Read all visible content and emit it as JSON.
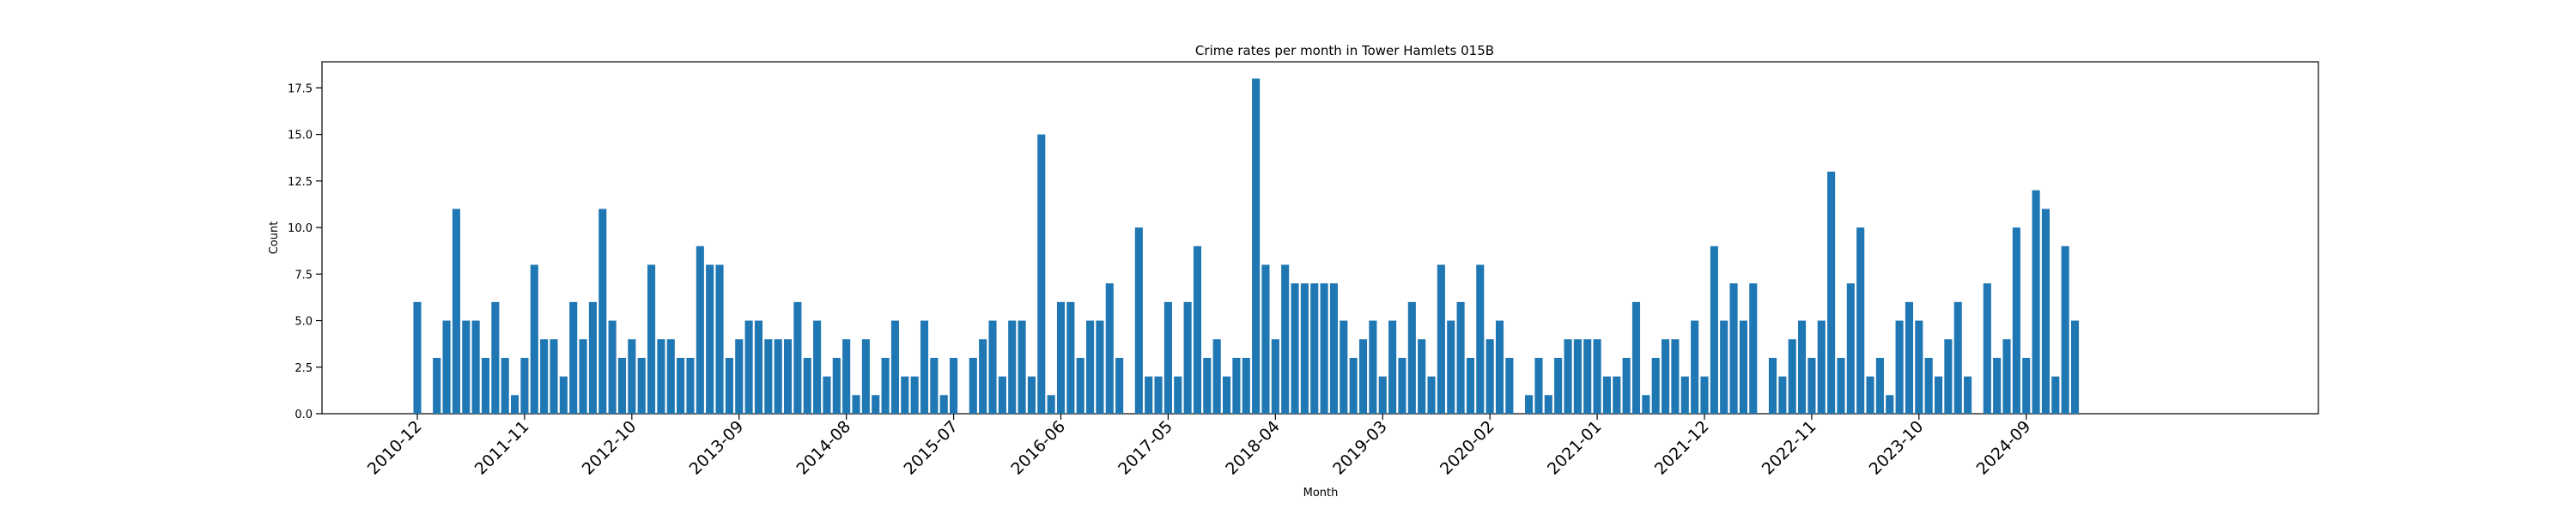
{
  "chart_data": {
    "type": "bar",
    "title": "Crime rates per month in Tower Hamlets 015B",
    "xlabel": "Month",
    "ylabel": "Count",
    "ylim": [
      0,
      18.9
    ],
    "yticks": [
      0.0,
      2.5,
      5.0,
      7.5,
      10.0,
      12.5,
      15.0,
      17.5
    ],
    "ytick_labels": [
      "0.0",
      "2.5",
      "5.0",
      "7.5",
      "10.0",
      "12.5",
      "15.0",
      "17.5"
    ],
    "start_month": "2010-12",
    "xtick_labels": [
      "2010-12",
      "2011-11",
      "2012-10",
      "2013-09",
      "2014-08",
      "2015-07",
      "2016-06",
      "2017-05",
      "2018-04",
      "2019-03",
      "2020-02",
      "2021-01",
      "2021-12",
      "2022-11",
      "2023-10",
      "2024-09"
    ],
    "color": "#1f77b4",
    "values": [
      6,
      0,
      3,
      5,
      11,
      5,
      5,
      3,
      6,
      3,
      1,
      3,
      8,
      4,
      4,
      2,
      6,
      4,
      6,
      11,
      5,
      3,
      4,
      3,
      8,
      4,
      4,
      3,
      3,
      9,
      8,
      8,
      3,
      4,
      5,
      5,
      4,
      4,
      4,
      6,
      3,
      5,
      2,
      3,
      4,
      1,
      4,
      1,
      3,
      5,
      2,
      2,
      5,
      3,
      1,
      3,
      0,
      3,
      4,
      5,
      2,
      5,
      5,
      2,
      15,
      1,
      6,
      6,
      3,
      5,
      5,
      7,
      3,
      0,
      10,
      2,
      2,
      6,
      2,
      6,
      9,
      3,
      4,
      2,
      3,
      3,
      18,
      8,
      4,
      8,
      7,
      7,
      7,
      7,
      7,
      5,
      3,
      4,
      5,
      2,
      5,
      3,
      6,
      4,
      2,
      8,
      5,
      6,
      3,
      8,
      4,
      5,
      3,
      0,
      1,
      3,
      1,
      3,
      4,
      4,
      4,
      4,
      2,
      2,
      3,
      6,
      1,
      3,
      4,
      4,
      2,
      5,
      2,
      9,
      5,
      7,
      5,
      7,
      0,
      3,
      2,
      4,
      5,
      3,
      5,
      13,
      3,
      7,
      10,
      2,
      3,
      1,
      5,
      6,
      5,
      3,
      2,
      4,
      6,
      2,
      0,
      7,
      3,
      4,
      10,
      3,
      12,
      11,
      2,
      9,
      5
    ]
  }
}
